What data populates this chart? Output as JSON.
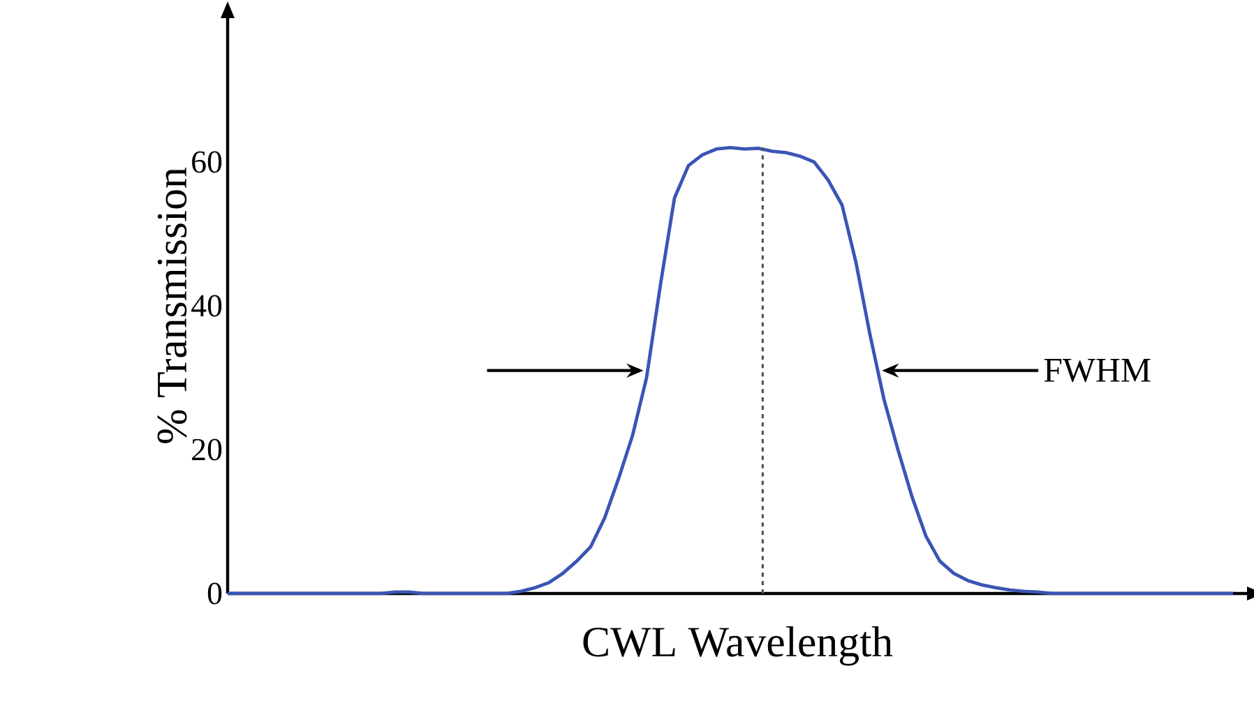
{
  "chart_data": {
    "type": "line",
    "xlabel": "CWL Wavelength",
    "ylabel": "% Transmission",
    "categories": [
      null,
      null,
      null,
      null,
      null,
      null,
      null,
      null,
      null,
      null,
      null,
      null,
      null,
      null,
      null,
      null,
      null,
      null,
      null,
      null,
      null,
      null,
      null,
      null,
      null,
      null,
      null,
      null,
      null,
      null,
      null,
      null,
      null,
      null,
      null,
      null,
      null,
      null,
      null,
      null,
      null,
      null,
      null,
      null,
      null,
      null,
      null,
      null,
      null,
      null,
      null,
      null,
      null,
      null,
      null,
      null,
      null,
      null,
      null,
      null,
      null,
      null,
      null,
      null,
      null,
      null,
      null,
      null,
      null,
      null,
      null,
      null,
      null
    ],
    "series": [
      {
        "color": "#3a55b4",
        "values": [
          0,
          0,
          0,
          0,
          0,
          0,
          0,
          0,
          0,
          0,
          0,
          0,
          0.2,
          0.2,
          0,
          0,
          0,
          0,
          0,
          0,
          0,
          0.3,
          0.8,
          1.5,
          2.8,
          4.5,
          6.5,
          10.5,
          16,
          22,
          30,
          43,
          55,
          59.5,
          61,
          61.8,
          62,
          61.8,
          61.9,
          61.5,
          61.3,
          60.8,
          60,
          57.5,
          54,
          46,
          36,
          27,
          20,
          13.5,
          8,
          4.5,
          2.8,
          1.8,
          1.2,
          0.8,
          0.5,
          0.3,
          0.2,
          0,
          0,
          0,
          0,
          0,
          0,
          0,
          0,
          0,
          0,
          0,
          0,
          0,
          0
        ]
      }
    ],
    "ylim": [
      0,
      80
    ],
    "yticks": [
      0,
      20,
      40,
      60
    ],
    "tick_labels": "y",
    "marker": "none",
    "line_style": "solid",
    "annotations": [
      "FWHM"
    ]
  }
}
